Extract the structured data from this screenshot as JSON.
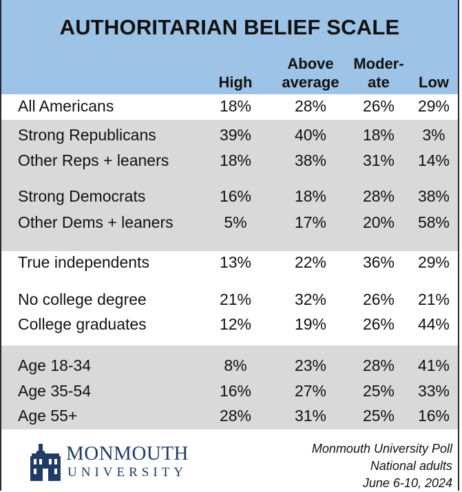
{
  "chart_data": {
    "type": "table",
    "title": "AUTHORITARIAN BELIEF SCALE",
    "columns": [
      {
        "line1": "",
        "line2": "High"
      },
      {
        "line1": "Above",
        "line2": "average"
      },
      {
        "line1": "Moder-",
        "line2": "ate"
      },
      {
        "line1": "",
        "line2": "Low"
      }
    ],
    "rows": [
      {
        "label": "All Americans",
        "values": [
          "18%",
          "28%",
          "26%",
          "29%"
        ]
      },
      {
        "label": "Strong Republicans",
        "values": [
          "39%",
          "40%",
          "18%",
          "3%"
        ]
      },
      {
        "label": "Other Reps + leaners",
        "values": [
          "18%",
          "38%",
          "31%",
          "14%"
        ]
      },
      {
        "label": "Strong Democrats",
        "values": [
          "16%",
          "18%",
          "28%",
          "38%"
        ]
      },
      {
        "label": "Other Dems + leaners",
        "values": [
          "5%",
          "17%",
          "20%",
          "58%"
        ]
      },
      {
        "label": "True independents",
        "values": [
          "13%",
          "22%",
          "36%",
          "29%"
        ]
      },
      {
        "label": "No college degree",
        "values": [
          "21%",
          "32%",
          "26%",
          "21%"
        ]
      },
      {
        "label": "College graduates",
        "values": [
          "12%",
          "19%",
          "26%",
          "44%"
        ]
      },
      {
        "label": "Age 18-34",
        "values": [
          "8%",
          "23%",
          "28%",
          "41%"
        ]
      },
      {
        "label": "Age 35-54",
        "values": [
          "16%",
          "27%",
          "25%",
          "33%"
        ]
      },
      {
        "label": "Age 55+",
        "values": [
          "28%",
          "31%",
          "25%",
          "16%"
        ]
      }
    ]
  },
  "logo": {
    "name": "MONMOUTH",
    "sub": "UNIVERSITY",
    "icon": "building-icon",
    "color": "#1f3b66"
  },
  "source": {
    "line1": "Monmouth University Poll",
    "line2": "National adults",
    "line3": "June 6-10, 2024"
  },
  "colors": {
    "header": "#9dc3e6",
    "band": "#d9d9d9"
  }
}
